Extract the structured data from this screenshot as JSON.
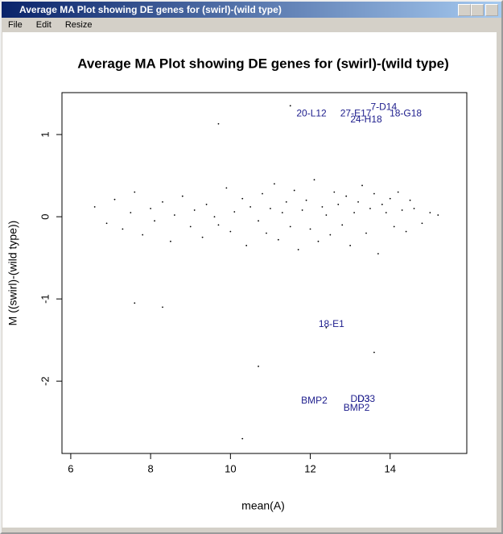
{
  "window": {
    "title": "Average MA Plot showing DE genes for (swirl)-(wild type)",
    "menu": [
      "File",
      "Edit",
      "Resize"
    ]
  },
  "chart_data": {
    "type": "scatter",
    "title": "Average MA Plot showing DE genes for (swirl)-(wild type)",
    "x_label": "mean(A)",
    "y_label": "M ((swirl)-(wild type))",
    "xlim": [
      5.78,
      15.92
    ],
    "ylim": [
      -2.88,
      1.51
    ],
    "xticks": [
      6,
      8,
      10,
      12,
      14
    ],
    "yticks": [
      -2,
      -1,
      0,
      1
    ],
    "color": "#000000",
    "label_color": "#1c1c8c",
    "x": [
      6.6,
      6.9,
      7.1,
      7.3,
      7.5,
      7.6,
      7.8,
      8.0,
      8.1,
      8.3,
      8.5,
      8.6,
      8.8,
      9.0,
      9.1,
      9.3,
      9.4,
      9.6,
      9.7,
      9.9,
      10.0,
      10.1,
      10.3,
      10.4,
      10.5,
      10.7,
      10.8,
      10.9,
      11.0,
      11.1,
      11.2,
      11.3,
      11.4,
      11.5,
      11.6,
      11.7,
      11.8,
      11.9,
      12.0,
      12.1,
      12.2,
      12.3,
      12.4,
      12.5,
      12.6,
      12.7,
      12.8,
      12.9,
      13.0,
      13.1,
      13.2,
      13.3,
      13.4,
      13.5,
      13.6,
      13.7,
      13.8,
      13.9,
      14.0,
      14.1,
      14.2,
      14.3,
      14.4,
      14.5,
      14.6,
      14.8,
      15.0,
      15.2,
      9.7,
      10.3,
      10.7,
      12.4,
      13.6,
      7.6,
      8.3,
      11.5
    ],
    "values": [
      0.12,
      -0.08,
      0.21,
      -0.15,
      0.05,
      0.3,
      -0.22,
      0.1,
      -0.05,
      0.18,
      -0.3,
      0.02,
      0.25,
      -0.12,
      0.08,
      -0.25,
      0.15,
      0.0,
      -0.1,
      0.35,
      -0.18,
      0.06,
      0.22,
      -0.35,
      0.12,
      -0.05,
      0.28,
      -0.2,
      0.1,
      0.4,
      -0.28,
      0.05,
      0.18,
      -0.12,
      0.32,
      -0.4,
      0.08,
      0.2,
      -0.15,
      0.45,
      -0.3,
      0.12,
      0.02,
      -0.22,
      0.3,
      0.15,
      -0.1,
      0.25,
      -0.35,
      0.05,
      0.18,
      0.38,
      -0.2,
      0.1,
      0.28,
      -0.45,
      0.15,
      0.05,
      0.22,
      -0.12,
      0.3,
      0.08,
      -0.18,
      0.2,
      0.1,
      -0.08,
      0.05,
      0.02,
      1.13,
      -2.7,
      -1.82,
      -1.35,
      -1.65,
      -1.05,
      -1.1,
      1.35
    ],
    "labeled_points": [
      {
        "text": "20-L12",
        "x": 12.03,
        "y": 1.25
      },
      {
        "text": "27-E17",
        "x": 13.14,
        "y": 1.25
      },
      {
        "text": "7-D14",
        "x": 13.84,
        "y": 1.33
      },
      {
        "text": "24-H18",
        "x": 13.4,
        "y": 1.18
      },
      {
        "text": "18-G18",
        "x": 14.39,
        "y": 1.25
      },
      {
        "text": "18-E1",
        "x": 12.53,
        "y": -1.31
      },
      {
        "text": "BMP2",
        "x": 12.1,
        "y": -2.24
      },
      {
        "text": "DD3",
        "x": 13.25,
        "y": -2.22
      },
      {
        "text": "D33",
        "x": 13.4,
        "y": -2.22
      },
      {
        "text": "BMP2",
        "x": 13.16,
        "y": -2.33
      }
    ]
  }
}
